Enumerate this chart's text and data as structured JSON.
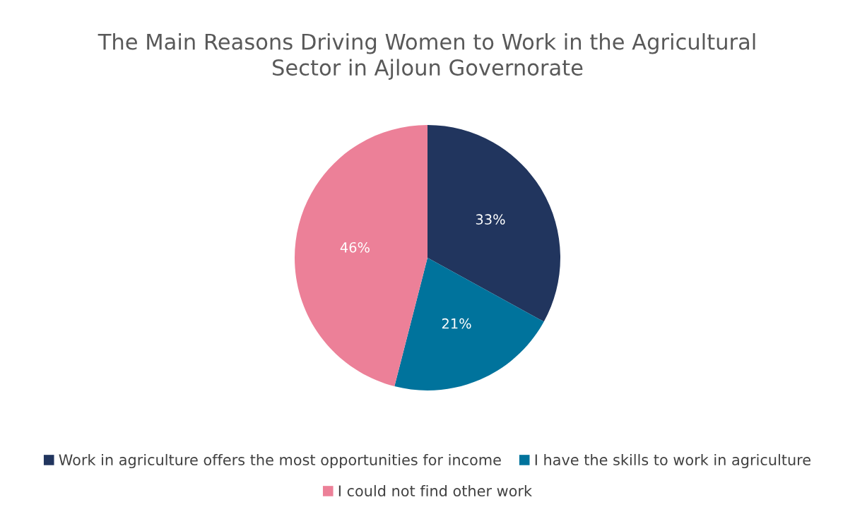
{
  "chart_data": {
    "type": "pie",
    "title": "The Main Reasons Driving Women to Work in the Agricultural\nSector in Ajloun Governorate",
    "categories": [
      "Work in agriculture offers the most opportunities for income",
      "I have the skills to work in agriculture",
      "I could not find other work"
    ],
    "values": [
      33,
      21,
      46
    ],
    "value_labels": [
      "33%",
      "21%",
      "46%"
    ],
    "colors": [
      "#21355e",
      "#00739c",
      "#ec8098"
    ],
    "legend": "bottom"
  }
}
